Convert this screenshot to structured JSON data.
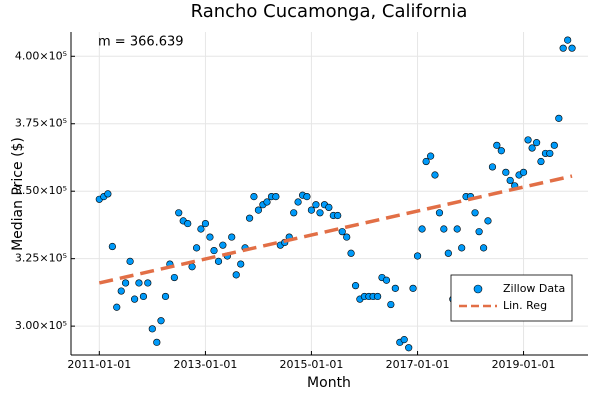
{
  "chart_data": {
    "type": "scatter",
    "title": "Rancho Cucamonga, California",
    "x_label": "Month",
    "y_label": "Median Price ($)",
    "annotation": "m = 366.639",
    "xlim": [
      "2010-06-20",
      "2020-03-20"
    ],
    "xticks": [
      "2011-01-01",
      "2013-01-01",
      "2015-01-01",
      "2017-01-01",
      "2019-01-01"
    ],
    "ylim": [
      289300,
      409000
    ],
    "yticks": [
      {
        "value": 300000,
        "label": "3.00×10⁵"
      },
      {
        "value": 325000,
        "label": "3.25×10⁵"
      },
      {
        "value": 350000,
        "label": "3.50×10⁵"
      },
      {
        "value": 375000,
        "label": "3.75×10⁵"
      },
      {
        "value": 400000,
        "label": "4.00×10⁵"
      }
    ],
    "grid": true,
    "legend": "lower right",
    "series": [
      {
        "name": "Zillow Data",
        "kind": "scatter",
        "color": "#009af9",
        "x": [
          "2011-01-01",
          "2011-02-01",
          "2011-03-01",
          "2011-04-01",
          "2011-05-01",
          "2011-06-01",
          "2011-07-01",
          "2011-08-01",
          "2011-09-01",
          "2011-10-01",
          "2011-11-01",
          "2011-12-01",
          "2012-01-01",
          "2012-02-01",
          "2012-03-01",
          "2012-04-01",
          "2012-05-01",
          "2012-06-01",
          "2012-07-01",
          "2012-08-01",
          "2012-09-01",
          "2012-10-01",
          "2012-11-01",
          "2012-12-01",
          "2013-01-01",
          "2013-02-01",
          "2013-03-01",
          "2013-04-01",
          "2013-05-01",
          "2013-06-01",
          "2013-07-01",
          "2013-08-01",
          "2013-09-01",
          "2013-10-01",
          "2013-11-01",
          "2013-12-01",
          "2014-01-01",
          "2014-02-01",
          "2014-03-01",
          "2014-04-01",
          "2014-05-01",
          "2014-06-01",
          "2014-07-01",
          "2014-08-01",
          "2014-09-01",
          "2014-10-01",
          "2014-11-01",
          "2014-12-01",
          "2015-01-01",
          "2015-02-01",
          "2015-03-01",
          "2015-04-01",
          "2015-05-01",
          "2015-06-01",
          "2015-07-01",
          "2015-08-01",
          "2015-09-01",
          "2015-10-01",
          "2015-11-01",
          "2015-12-01",
          "2016-01-01",
          "2016-02-01",
          "2016-03-01",
          "2016-04-01",
          "2016-05-01",
          "2016-06-01",
          "2016-07-01",
          "2016-08-01",
          "2016-09-01",
          "2016-10-01",
          "2016-11-01",
          "2016-12-01",
          "2017-01-01",
          "2017-02-01",
          "2017-03-01",
          "2017-04-01",
          "2017-05-01",
          "2017-06-01",
          "2017-07-01",
          "2017-08-01",
          "2017-09-01",
          "2017-10-01",
          "2017-11-01",
          "2017-12-01",
          "2018-01-01",
          "2018-02-01",
          "2018-03-01",
          "2018-04-01",
          "2018-05-01",
          "2018-06-01",
          "2018-07-01",
          "2018-08-01",
          "2018-09-01",
          "2018-10-01",
          "2018-11-01",
          "2018-12-01",
          "2019-01-01",
          "2019-02-01",
          "2019-03-01",
          "2019-04-01",
          "2019-05-01",
          "2019-06-01",
          "2019-07-01",
          "2019-08-01",
          "2019-09-01",
          "2019-10-01",
          "2019-11-01",
          "2019-12-01"
        ],
        "values": [
          347000,
          348000,
          349000,
          329500,
          307000,
          313000,
          316000,
          324000,
          310000,
          316000,
          311000,
          316000,
          299000,
          294000,
          302000,
          311000,
          323000,
          318000,
          342000,
          339000,
          338000,
          322000,
          329000,
          336000,
          338000,
          333000,
          328000,
          324000,
          330000,
          326000,
          333000,
          319000,
          323000,
          329000,
          340000,
          348000,
          343000,
          345000,
          346000,
          348000,
          348000,
          330000,
          331000,
          333000,
          342000,
          346000,
          348500,
          348000,
          343000,
          345000,
          342000,
          345000,
          344000,
          341000,
          341000,
          335000,
          333000,
          327000,
          315000,
          310000,
          311000,
          311000,
          311000,
          311000,
          318000,
          317000,
          308000,
          314000,
          294000,
          295000,
          292000,
          314000,
          326000,
          336000,
          361000,
          363000,
          356000,
          342000,
          336000,
          327000,
          310000,
          336000,
          329000,
          348000,
          348000,
          342000,
          335000,
          329000,
          339000,
          359000,
          367000,
          365000,
          357000,
          354000,
          352000,
          356000,
          357000,
          369000,
          366000,
          368000,
          361000,
          364000,
          364000,
          367000,
          377000,
          403000,
          406000,
          403000
        ]
      },
      {
        "name": "Lin. Reg",
        "kind": "line",
        "color": "#e26f46",
        "x": [
          "2011-01-01",
          "2019-12-01"
        ],
        "values": [
          316000,
          355600
        ]
      }
    ]
  }
}
